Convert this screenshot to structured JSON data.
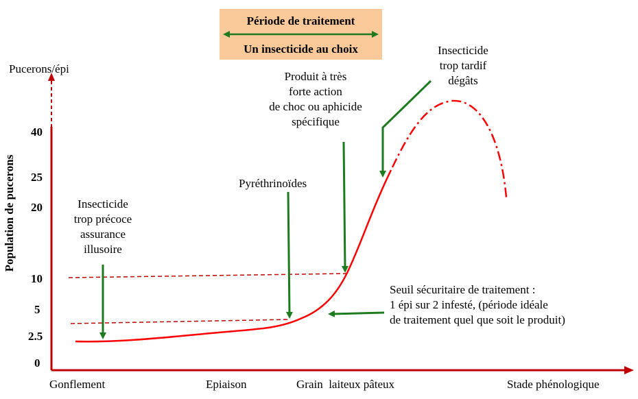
{
  "header_box": {
    "top": "Période de traitement",
    "bottom": "Un insecticide au choix"
  },
  "axes": {
    "y_unit": "Pucerons/épi",
    "y_label": "Population de pucerons",
    "y_ticks": [
      "40",
      "25",
      "20",
      "10",
      "5",
      "2.5",
      "0"
    ],
    "x_ticks": [
      "Gonflement",
      "Epiaison",
      "Grain  laiteux pâteux"
    ],
    "x_label": "Stade phénologique"
  },
  "annotations": {
    "early": [
      "Insecticide",
      "trop précoce",
      "assurance",
      "illusoire"
    ],
    "pyrethro": "Pyréthrinoïdes",
    "strong": [
      "Produit à très",
      "forte action",
      "de choc ou aphicide",
      "spécifique"
    ],
    "late": [
      "Insecticide",
      "trop tardif",
      "dégâts"
    ],
    "threshold": [
      "Seuil sécuritaire de traitement :",
      "1 épi sur 2 infesté, (période idéale",
      "de traitement quel que soit le produit)"
    ]
  },
  "colors": {
    "curve": "#ff0000",
    "axis": "#c00000",
    "arrow": "#1e7a1e",
    "box": "#f9c99a"
  }
}
